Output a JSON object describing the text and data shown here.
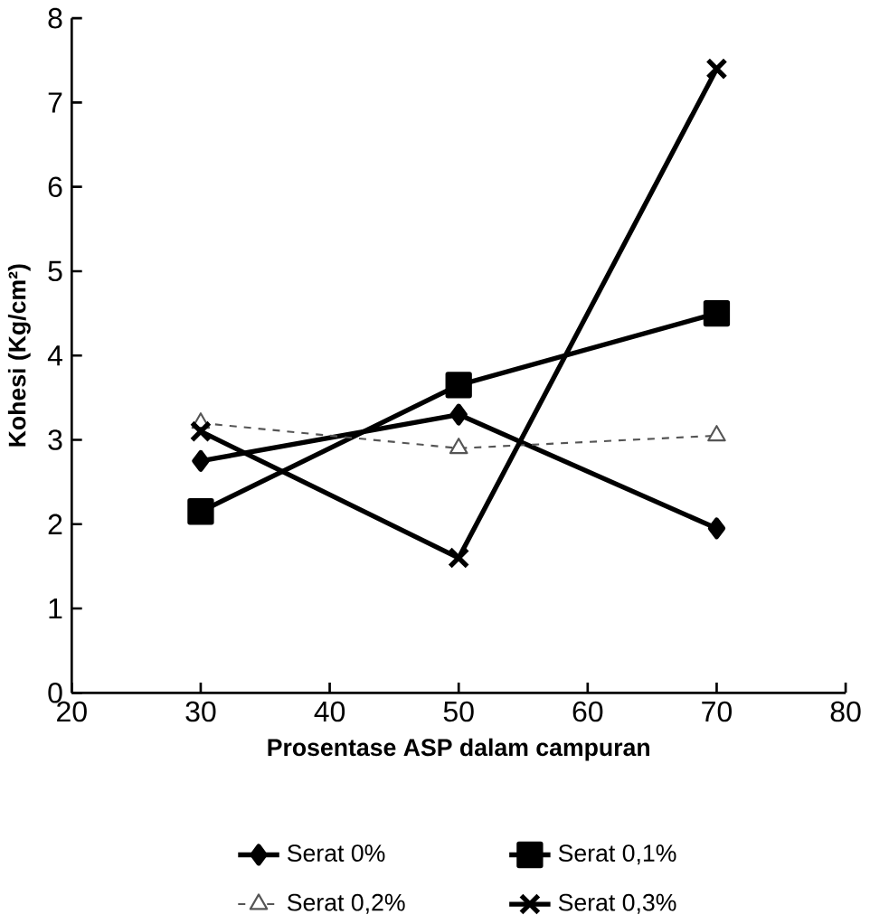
{
  "chart_data": {
    "type": "line",
    "xlabel": "Prosentase ASP dalam campuran",
    "ylabel": "Kohesi (Kg/cm²)",
    "x": [
      30,
      50,
      70
    ],
    "series": [
      {
        "name": "Serat 0%",
        "color": "#000000",
        "values": [
          2.75,
          3.3,
          1.95
        ],
        "marker": "diamond",
        "line_style": "solid"
      },
      {
        "name": "Serat 0,1%",
        "color": "#000000",
        "values": [
          2.15,
          3.65,
          4.5
        ],
        "marker": "square",
        "line_style": "solid"
      },
      {
        "name": "Serat 0,2%",
        "color": "#555555",
        "values": [
          3.2,
          2.9,
          3.05
        ],
        "marker": "triangle",
        "line_style": "dashed"
      },
      {
        "name": "Serat 0,3%",
        "color": "#000000",
        "values": [
          3.1,
          1.6,
          7.4
        ],
        "marker": "cross",
        "line_style": "solid"
      }
    ],
    "xlim": [
      20,
      80
    ],
    "ylim": [
      0,
      8
    ],
    "xticks": [
      20,
      30,
      40,
      50,
      60,
      70,
      80
    ],
    "yticks": [
      0,
      1,
      2,
      3,
      4,
      5,
      6,
      7,
      8
    ],
    "grid": false,
    "legend": "bottom"
  }
}
